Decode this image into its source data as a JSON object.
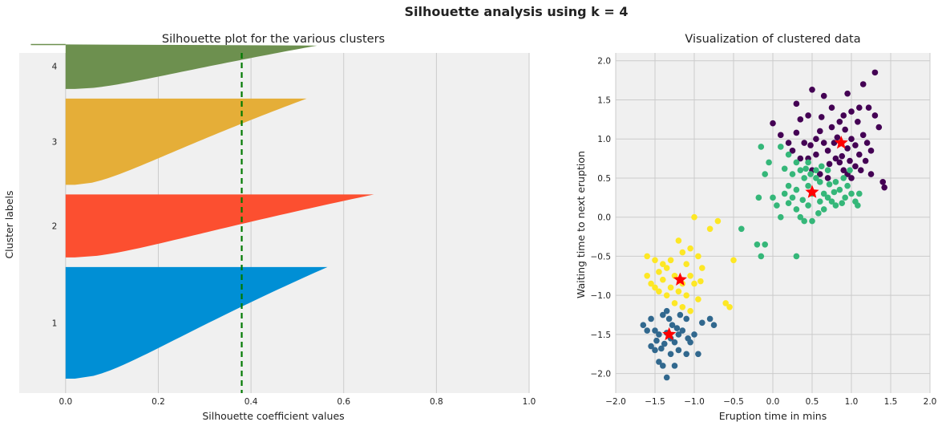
{
  "suptitle": "Silhouette analysis using k = 4",
  "colors": {
    "panel_bg": "#f0f0f0",
    "grid": "#cbcbcb",
    "cluster_1": "#008fd5",
    "cluster_2": "#fc4f30",
    "cluster_3": "#e5ae38",
    "cluster_4": "#6d904f",
    "avg_line": "#007a00",
    "centroid": "#ff0000",
    "viridis_0": "#440154",
    "viridis_1": "#31688e",
    "viridis_2": "#35b779",
    "viridis_3": "#fde725"
  },
  "chart_data": [
    {
      "type": "bar",
      "orientation": "horizontal",
      "title": "Silhouette plot for the various clusters",
      "xlabel": "Silhouette coefficient values",
      "ylabel": "Cluster labels",
      "xlim": [
        -0.1,
        1.0
      ],
      "xticks": [
        "0.0",
        "0.2",
        "0.4",
        "0.6",
        "0.8",
        "1.0"
      ],
      "grid": true,
      "average_silhouette": 0.38,
      "series": [
        {
          "label": "1",
          "count": 110,
          "max": 0.565,
          "min": 0.0
        },
        {
          "label": "2",
          "count": 62,
          "max": 0.665,
          "min": 0.0
        },
        {
          "label": "3",
          "count": 85,
          "max": 0.52,
          "min": 0.0
        },
        {
          "label": "4",
          "count": 45,
          "max": 0.57,
          "min": -0.075
        }
      ]
    },
    {
      "type": "scatter",
      "title": "Visualization of clustered data",
      "xlabel": "Eruption time in mins",
      "ylabel": "Waiting time to next eruption",
      "xlim": [
        -2.0,
        2.0
      ],
      "ylim": [
        -2.25,
        2.1
      ],
      "xticks": [
        "−2.0",
        "−1.5",
        "−1.0",
        "−0.5",
        "0.0",
        "0.5",
        "1.0",
        "1.5",
        "2.0"
      ],
      "yticks": [
        "−2.0",
        "−1.5",
        "−1.0",
        "−0.5",
        "0.0",
        "0.5",
        "1.0",
        "1.5",
        "2.0"
      ],
      "grid": true,
      "clusters": [
        {
          "color_key": "viridis_0",
          "centroid": [
            0.87,
            0.95
          ],
          "points": [
            [
              0.5,
              1.63
            ],
            [
              0.65,
              1.55
            ],
            [
              0.75,
              1.4
            ],
            [
              0.9,
              1.3
            ],
            [
              0.95,
              1.58
            ],
            [
              1.1,
              1.4
            ],
            [
              1.3,
              1.85
            ],
            [
              1.15,
              1.7
            ],
            [
              1.0,
              1.35
            ],
            [
              1.4,
              0.45
            ],
            [
              1.42,
              0.38
            ],
            [
              0.3,
              1.45
            ],
            [
              0.35,
              1.25
            ],
            [
              0.45,
              1.3
            ],
            [
              0.6,
              1.1
            ],
            [
              0.65,
              0.95
            ],
            [
              0.7,
              0.85
            ],
            [
              0.8,
              0.75
            ],
            [
              0.85,
              0.7
            ],
            [
              0.9,
              0.6
            ],
            [
              0.95,
              0.55
            ],
            [
              1.0,
              0.5
            ],
            [
              1.05,
              0.65
            ],
            [
              1.1,
              0.8
            ],
            [
              1.15,
              1.05
            ],
            [
              1.2,
              0.95
            ],
            [
              1.25,
              0.55
            ],
            [
              1.3,
              1.3
            ],
            [
              1.35,
              1.15
            ],
            [
              0.4,
              0.95
            ],
            [
              0.45,
              0.75
            ],
            [
              0.55,
              0.8
            ],
            [
              0.55,
              1.0
            ],
            [
              0.75,
              1.15
            ],
            [
              0.82,
              1.02
            ],
            [
              0.88,
              0.78
            ],
            [
              0.98,
              0.72
            ],
            [
              1.05,
              0.92
            ],
            [
              1.12,
              0.6
            ],
            [
              1.18,
              0.72
            ],
            [
              1.25,
              0.85
            ],
            [
              0.0,
              1.2
            ],
            [
              0.1,
              1.05
            ],
            [
              0.2,
              0.95
            ],
            [
              0.25,
              0.85
            ],
            [
              0.35,
              0.75
            ],
            [
              0.5,
              0.6
            ],
            [
              0.6,
              0.55
            ],
            [
              0.7,
              0.5
            ],
            [
              0.78,
              0.95
            ],
            [
              0.92,
              1.12
            ],
            [
              1.0,
              1.0
            ],
            [
              1.08,
              1.22
            ],
            [
              0.3,
              1.08
            ],
            [
              0.62,
              1.28
            ],
            [
              0.85,
              1.22
            ],
            [
              1.22,
              1.4
            ],
            [
              0.48,
              0.92
            ],
            [
              0.72,
              0.68
            ],
            [
              0.95,
              0.88
            ]
          ]
        },
        {
          "color_key": "viridis_1",
          "centroid": [
            -1.32,
            -1.5
          ],
          "points": [
            [
              -1.65,
              -1.38
            ],
            [
              -1.55,
              -1.3
            ],
            [
              -1.5,
              -1.45
            ],
            [
              -1.45,
              -1.5
            ],
            [
              -1.4,
              -1.25
            ],
            [
              -1.35,
              -1.2
            ],
            [
              -1.3,
              -1.55
            ],
            [
              -1.25,
              -1.6
            ],
            [
              -1.2,
              -1.5
            ],
            [
              -1.15,
              -1.45
            ],
            [
              -1.1,
              -1.3
            ],
            [
              -1.05,
              -1.6
            ],
            [
              -1.0,
              -1.5
            ],
            [
              -0.95,
              -1.75
            ],
            [
              -0.9,
              -1.35
            ],
            [
              -0.8,
              -1.3
            ],
            [
              -0.75,
              -1.38
            ],
            [
              -1.5,
              -1.7
            ],
            [
              -1.45,
              -1.85
            ],
            [
              -1.35,
              -2.05
            ],
            [
              -1.4,
              -1.9
            ],
            [
              -1.3,
              -1.75
            ],
            [
              -1.25,
              -1.9
            ],
            [
              -1.55,
              -1.65
            ],
            [
              -1.2,
              -1.7
            ],
            [
              -1.1,
              -1.75
            ],
            [
              -1.38,
              -1.62
            ],
            [
              -1.28,
              -1.38
            ],
            [
              -1.18,
              -1.25
            ],
            [
              -1.42,
              -1.68
            ],
            [
              -1.32,
              -1.3
            ],
            [
              -1.22,
              -1.42
            ],
            [
              -1.48,
              -1.58
            ],
            [
              -1.08,
              -1.55
            ],
            [
              -1.6,
              -1.45
            ],
            [
              -1.35,
              -1.48
            ]
          ]
        },
        {
          "color_key": "viridis_2",
          "centroid": [
            0.5,
            0.32
          ],
          "points": [
            [
              -0.15,
              0.9
            ],
            [
              -0.05,
              0.7
            ],
            [
              -0.1,
              0.55
            ],
            [
              0.1,
              0.9
            ],
            [
              0.2,
              0.8
            ],
            [
              0.3,
              0.7
            ],
            [
              0.35,
              0.6
            ],
            [
              0.4,
              0.5
            ],
            [
              0.45,
              0.4
            ],
            [
              0.5,
              0.3
            ],
            [
              0.55,
              0.5
            ],
            [
              0.6,
              0.45
            ],
            [
              0.65,
              0.3
            ],
            [
              0.7,
              0.25
            ],
            [
              0.75,
              0.2
            ],
            [
              0.8,
              0.15
            ],
            [
              0.85,
              0.35
            ],
            [
              0.9,
              0.5
            ],
            [
              0.95,
              0.4
            ],
            [
              1.0,
              0.3
            ],
            [
              1.05,
              0.2
            ],
            [
              1.1,
              0.3
            ],
            [
              0.0,
              0.25
            ],
            [
              0.05,
              0.15
            ],
            [
              0.1,
              0.0
            ],
            [
              0.15,
              0.3
            ],
            [
              0.2,
              0.4
            ],
            [
              0.25,
              0.25
            ],
            [
              0.3,
              0.1
            ],
            [
              0.35,
              0.0
            ],
            [
              0.4,
              -0.05
            ],
            [
              0.45,
              0.15
            ],
            [
              0.5,
              -0.05
            ],
            [
              -0.4,
              -0.15
            ],
            [
              -0.2,
              -0.35
            ],
            [
              -0.15,
              -0.5
            ],
            [
              -0.1,
              -0.35
            ],
            [
              0.3,
              -0.5
            ],
            [
              0.6,
              0.2
            ],
            [
              0.7,
              0.6
            ],
            [
              0.8,
              0.45
            ],
            [
              0.55,
              0.6
            ],
            [
              0.45,
              0.7
            ],
            [
              0.65,
              0.1
            ],
            [
              0.25,
              0.55
            ],
            [
              0.15,
              0.62
            ],
            [
              0.38,
              0.22
            ],
            [
              0.48,
              0.55
            ],
            [
              0.58,
              0.05
            ],
            [
              0.72,
              0.42
            ],
            [
              0.88,
              0.18
            ],
            [
              0.98,
              0.6
            ],
            [
              1.08,
              0.15
            ],
            [
              0.2,
              0.18
            ],
            [
              0.3,
              0.35
            ],
            [
              0.42,
              0.62
            ],
            [
              0.62,
              0.65
            ],
            [
              0.78,
              0.32
            ],
            [
              0.92,
              0.25
            ],
            [
              -0.18,
              0.25
            ]
          ]
        },
        {
          "color_key": "viridis_3",
          "centroid": [
            -1.18,
            -0.8
          ],
          "points": [
            [
              -1.6,
              -0.5
            ],
            [
              -1.5,
              -0.55
            ],
            [
              -1.45,
              -0.7
            ],
            [
              -1.4,
              -0.8
            ],
            [
              -1.35,
              -0.65
            ],
            [
              -1.3,
              -0.9
            ],
            [
              -1.25,
              -0.75
            ],
            [
              -1.2,
              -0.3
            ],
            [
              -1.15,
              -0.45
            ],
            [
              -1.1,
              -0.6
            ],
            [
              -1.05,
              -0.75
            ],
            [
              -1.0,
              -0.85
            ],
            [
              -0.95,
              -0.5
            ],
            [
              -0.9,
              -0.65
            ],
            [
              -0.8,
              -0.15
            ],
            [
              -0.7,
              -0.05
            ],
            [
              -1.0,
              0.0
            ],
            [
              -0.5,
              -0.55
            ],
            [
              -0.6,
              -1.1
            ],
            [
              -0.55,
              -1.15
            ],
            [
              -1.05,
              -1.2
            ],
            [
              -1.15,
              -1.15
            ],
            [
              -1.25,
              -1.1
            ],
            [
              -1.35,
              -1.0
            ],
            [
              -1.45,
              -0.95
            ],
            [
              -1.55,
              -0.85
            ],
            [
              -1.6,
              -0.75
            ],
            [
              -1.3,
              -0.55
            ],
            [
              -1.2,
              -0.95
            ],
            [
              -1.1,
              -1.0
            ],
            [
              -0.95,
              -1.05
            ],
            [
              -1.05,
              -0.4
            ],
            [
              -0.92,
              -0.82
            ],
            [
              -1.4,
              -0.6
            ],
            [
              -1.15,
              -0.85
            ],
            [
              -1.5,
              -0.9
            ]
          ]
        }
      ]
    }
  ]
}
